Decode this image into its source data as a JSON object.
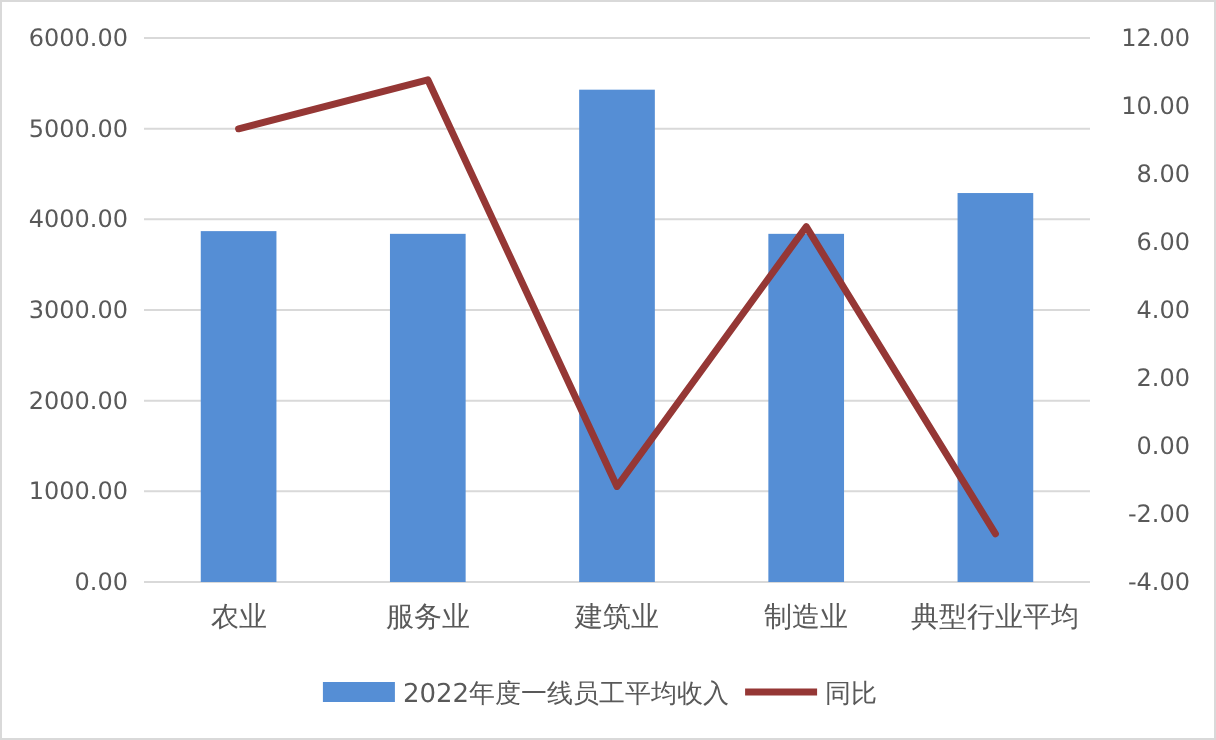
{
  "chart_data": {
    "type": "bar",
    "categories": [
      "农业",
      "服务业",
      "建筑业",
      "制造业",
      "典型行业平均"
    ],
    "series": [
      {
        "name": "2022年度一线员工平均收入",
        "color": "#558ed5",
        "values": [
          3870,
          3840,
          5430,
          3840,
          4290
        ]
      },
      {
        "name": "同比",
        "type": "line",
        "axis": "y2",
        "color": "#953735",
        "values": [
          9.33,
          10.77,
          -1.19,
          6.45,
          -2.58
        ]
      }
    ],
    "ylim": [
      0,
      6000
    ],
    "yticks": [
      {
        "value": 0,
        "label": "0.00"
      },
      {
        "value": 1000,
        "label": "1000.00"
      },
      {
        "value": 2000,
        "label": "2000.00"
      },
      {
        "value": 3000,
        "label": "3000.00"
      },
      {
        "value": 4000,
        "label": "4000.00"
      },
      {
        "value": 5000,
        "label": "5000.00"
      },
      {
        "value": 6000,
        "label": "6000.00"
      }
    ],
    "y2lim": [
      -4,
      12
    ],
    "y2ticks": [
      {
        "value": -4,
        "label": "-4.00"
      },
      {
        "value": -2,
        "label": "-2.00"
      },
      {
        "value": 0,
        "label": "0.00"
      },
      {
        "value": 2,
        "label": "2.00"
      },
      {
        "value": 4,
        "label": "4.00"
      },
      {
        "value": 6,
        "label": "6.00"
      },
      {
        "value": 8,
        "label": "8.00"
      },
      {
        "value": 10,
        "label": "10.00"
      },
      {
        "value": 12,
        "label": "12.00"
      }
    ],
    "grid": "y",
    "legend": "bottom",
    "marker": "none"
  }
}
